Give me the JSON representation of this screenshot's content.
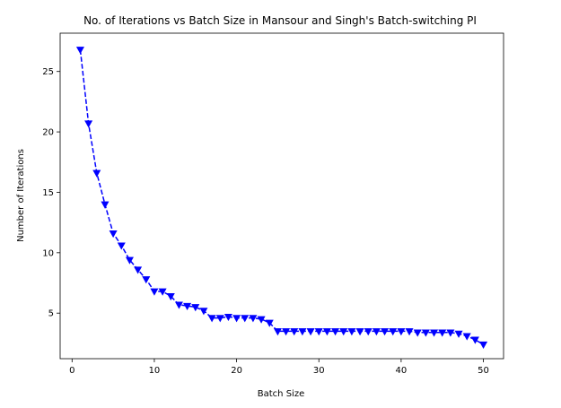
{
  "chart_data": {
    "type": "line",
    "title": "No. of Iterations vs Batch Size in Mansour and Singh's Batch-switching PI",
    "xlabel": "Batch Size",
    "ylabel": "Number of Iterations",
    "xlim": [
      -1.45,
      52.45
    ],
    "ylim": [
      1.23,
      28.17
    ],
    "xticks": [
      0,
      10,
      20,
      30,
      40,
      50
    ],
    "yticks": [
      5,
      10,
      15,
      20,
      25
    ],
    "grid": false,
    "legend": "none",
    "series": [
      {
        "color": "#0000ff",
        "line_style": "dashed",
        "marker": "triangle-down",
        "x": [
          1,
          2,
          3,
          4,
          5,
          6,
          7,
          8,
          9,
          10,
          11,
          12,
          13,
          14,
          15,
          16,
          17,
          18,
          19,
          20,
          21,
          22,
          23,
          24,
          25,
          26,
          27,
          28,
          29,
          30,
          31,
          32,
          33,
          34,
          35,
          36,
          37,
          38,
          39,
          40,
          41,
          42,
          43,
          44,
          45,
          46,
          47,
          48,
          49,
          50
        ],
        "y": [
          26.8,
          20.7,
          16.6,
          14.0,
          11.6,
          10.6,
          9.4,
          8.6,
          7.8,
          6.8,
          6.8,
          6.4,
          5.7,
          5.6,
          5.5,
          5.2,
          4.6,
          4.6,
          4.7,
          4.6,
          4.6,
          4.6,
          4.5,
          4.2,
          3.5,
          3.5,
          3.5,
          3.5,
          3.5,
          3.5,
          3.5,
          3.5,
          3.5,
          3.5,
          3.5,
          3.5,
          3.5,
          3.5,
          3.5,
          3.5,
          3.5,
          3.4,
          3.4,
          3.4,
          3.4,
          3.4,
          3.3,
          3.1,
          2.8,
          2.4
        ]
      }
    ]
  }
}
